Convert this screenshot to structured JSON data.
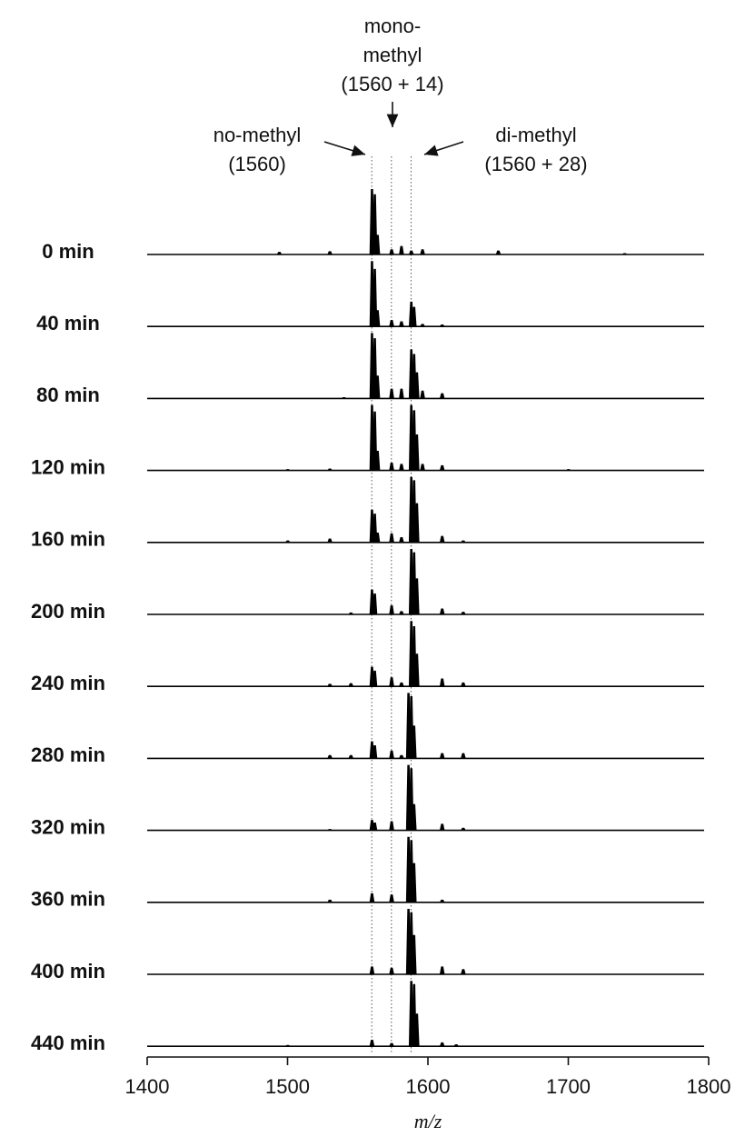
{
  "chart_data": {
    "type": "spectrum",
    "xlabel": "m/z",
    "xlim": [
      1400,
      1800
    ],
    "xticks": [
      1400,
      1500,
      1600,
      1700,
      1800
    ],
    "reference_lines": [
      1560,
      1574,
      1588
    ],
    "annotations": [
      {
        "lines": [
          "mono-",
          "methyl",
          "(1560 + 14)"
        ]
      },
      {
        "lines": [
          "no-methyl",
          "(1560)"
        ]
      },
      {
        "lines": [
          "di-methyl",
          "(1560 + 28)"
        ]
      }
    ],
    "series": [
      {
        "name": "0 min",
        "color": "#000000",
        "x": [
          1494,
          1530,
          1560,
          1562,
          1564,
          1574,
          1581,
          1588,
          1596,
          1650,
          1740
        ],
        "values": [
          4,
          5,
          100,
          92,
          30,
          8,
          13,
          6,
          8,
          6,
          2
        ]
      },
      {
        "name": "40 min",
        "color": "#000000",
        "x": [
          1560,
          1562,
          1564,
          1574,
          1581,
          1588,
          1590,
          1596,
          1610
        ],
        "values": [
          100,
          88,
          25,
          10,
          8,
          38,
          30,
          4,
          3
        ]
      },
      {
        "name": "80 min",
        "color": "#000000",
        "x": [
          1540,
          1560,
          1562,
          1564,
          1574,
          1581,
          1588,
          1590,
          1592,
          1596,
          1610
        ],
        "values": [
          2,
          100,
          92,
          35,
          15,
          15,
          75,
          68,
          40,
          12,
          8
        ]
      },
      {
        "name": "120 min",
        "color": "#000000",
        "x": [
          1500,
          1530,
          1560,
          1562,
          1564,
          1574,
          1581,
          1588,
          1590,
          1592,
          1596,
          1610,
          1700
        ],
        "values": [
          2,
          3,
          100,
          90,
          30,
          12,
          10,
          100,
          92,
          55,
          10,
          8,
          2
        ]
      },
      {
        "name": "160 min",
        "color": "#000000",
        "x": [
          1500,
          1530,
          1560,
          1562,
          1564,
          1574,
          1581,
          1588,
          1590,
          1592,
          1610,
          1625
        ],
        "values": [
          3,
          6,
          50,
          44,
          15,
          14,
          8,
          100,
          95,
          60,
          10,
          3
        ]
      },
      {
        "name": "200 min",
        "color": "#000000",
        "x": [
          1545,
          1560,
          1562,
          1574,
          1581,
          1588,
          1590,
          1592,
          1610,
          1625
        ],
        "values": [
          3,
          38,
          32,
          14,
          5,
          100,
          95,
          55,
          9,
          4
        ]
      },
      {
        "name": "240 min",
        "color": "#000000",
        "x": [
          1530,
          1545,
          1560,
          1562,
          1574,
          1581,
          1588,
          1590,
          1592,
          1610,
          1625
        ],
        "values": [
          4,
          5,
          30,
          24,
          14,
          6,
          100,
          92,
          50,
          12,
          6
        ]
      },
      {
        "name": "280 min",
        "color": "#000000",
        "x": [
          1530,
          1545,
          1560,
          1562,
          1574,
          1581,
          1586,
          1588,
          1590,
          1610,
          1625
        ],
        "values": [
          5,
          5,
          26,
          20,
          12,
          5,
          100,
          95,
          50,
          8,
          8
        ]
      },
      {
        "name": "320 min",
        "color": "#000000",
        "x": [
          1530,
          1560,
          1562,
          1574,
          1586,
          1588,
          1590,
          1610,
          1625
        ],
        "values": [
          2,
          16,
          12,
          14,
          100,
          95,
          40,
          10,
          4
        ]
      },
      {
        "name": "360 min",
        "color": "#000000",
        "x": [
          1530,
          1560,
          1574,
          1586,
          1588,
          1590,
          1610
        ],
        "values": [
          4,
          14,
          12,
          100,
          95,
          60,
          4
        ]
      },
      {
        "name": "400 min",
        "color": "#000000",
        "x": [
          1560,
          1574,
          1586,
          1588,
          1590,
          1610,
          1625
        ],
        "values": [
          12,
          10,
          100,
          95,
          60,
          12,
          8
        ]
      },
      {
        "name": "440 min",
        "color": "#000000",
        "x": [
          1500,
          1560,
          1574,
          1588,
          1590,
          1592,
          1610,
          1620
        ],
        "values": [
          2,
          10,
          5,
          100,
          95,
          50,
          6,
          3
        ]
      }
    ]
  }
}
